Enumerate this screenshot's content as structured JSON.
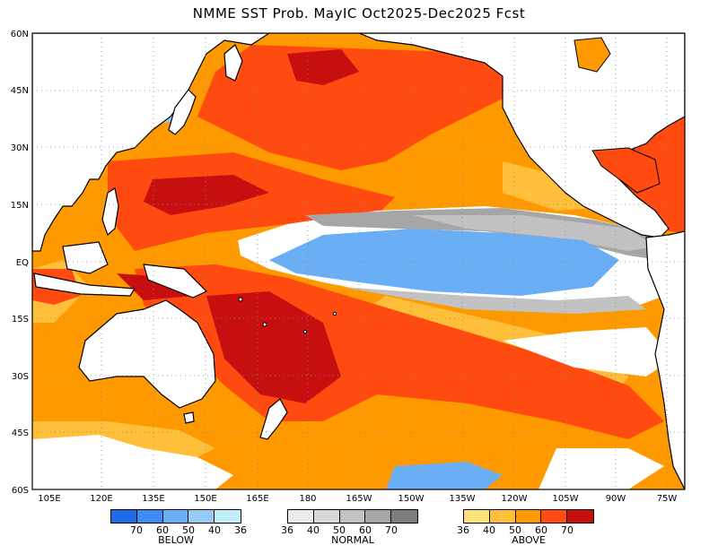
{
  "title": "NMME SST Prob. MayIC  Oct2025-Dec2025 Fcst",
  "map": {
    "lat_labels": [
      "60N",
      "45N",
      "30N",
      "15N",
      "EQ",
      "15S",
      "30S",
      "45S",
      "60S"
    ],
    "lon_labels": [
      "105E",
      "120E",
      "135E",
      "150E",
      "165E",
      "180",
      "165W",
      "150W",
      "135W",
      "120W",
      "105W",
      "90W",
      "75W"
    ]
  },
  "colors": {
    "below": [
      "#1e6be8",
      "#3d8ef0",
      "#6aaef5",
      "#96cdf7",
      "#bff0f8"
    ],
    "normal": [
      "#ececec",
      "#d8d8d8",
      "#c2c2c2",
      "#a6a6a6",
      "#7e7e7e"
    ],
    "above": [
      "#ffe27a",
      "#ffbf3a",
      "#ff9900",
      "#ff4a10",
      "#c80f10"
    ]
  },
  "legend": {
    "below": {
      "name": "BELOW",
      "ticks": [
        "70",
        "60",
        "50",
        "40",
        "36"
      ]
    },
    "normal": {
      "name": "NORMAL",
      "ticks": [
        "36",
        "40",
        "50",
        "60",
        "70"
      ]
    },
    "above": {
      "name": "ABOVE",
      "ticks": [
        "36",
        "40",
        "50",
        "60",
        "70"
      ]
    }
  }
}
